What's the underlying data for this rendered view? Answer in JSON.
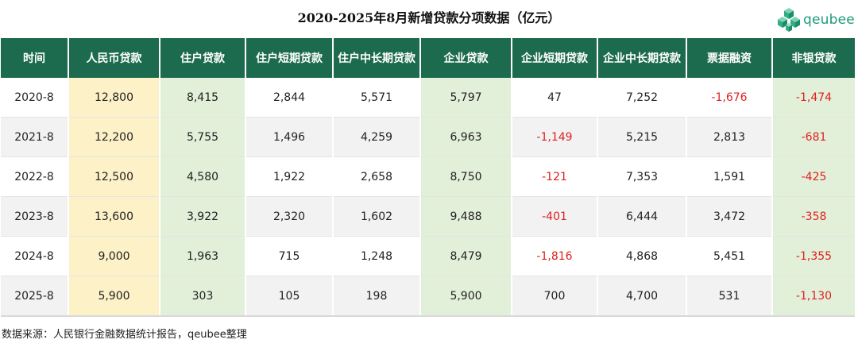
{
  "chart_data": {
    "type": "table",
    "title": "2020-2025年8月新增贷款分项数据（亿元）",
    "columns": [
      "时间",
      "人民币贷款",
      "住户贷款",
      "住户短期贷款",
      "住户中长期贷款",
      "企业贷款",
      "企业短期贷款",
      "企业中长期贷款",
      "票据融资",
      "非银贷款"
    ],
    "rows": [
      [
        "2020-8",
        "12,800",
        "8,415",
        "2,844",
        "5,571",
        "5,797",
        "47",
        "7,252",
        "-1,676",
        "-1,474"
      ],
      [
        "2021-8",
        "12,200",
        "5,755",
        "1,496",
        "4,259",
        "6,963",
        "-1,149",
        "5,215",
        "2,813",
        "-681"
      ],
      [
        "2022-8",
        "12,500",
        "4,580",
        "1,922",
        "2,658",
        "8,750",
        "-121",
        "7,353",
        "1,591",
        "-425"
      ],
      [
        "2023-8",
        "13,600",
        "3,922",
        "2,320",
        "1,602",
        "9,488",
        "-401",
        "6,444",
        "3,472",
        "-358"
      ],
      [
        "2024-8",
        "9,000",
        "1,963",
        "715",
        "1,248",
        "8,479",
        "-1,816",
        "4,868",
        "5,451",
        "-1,355"
      ],
      [
        "2025-8",
        "5,900",
        "303",
        "105",
        "198",
        "5,900",
        "700",
        "4,700",
        "531",
        "-1,130"
      ]
    ]
  },
  "logo": {
    "text": "qeubee",
    "icon": "cube-cluster-icon",
    "color": "#1e9c7a"
  },
  "source": "数据来源：人民银行金融数据统计报告，qeubee整理",
  "colors": {
    "header_bg": "#1d6b4f",
    "highlight_yellow": "#fdf1c8",
    "highlight_green": "#e3f0d9",
    "negative": "#e02020"
  }
}
